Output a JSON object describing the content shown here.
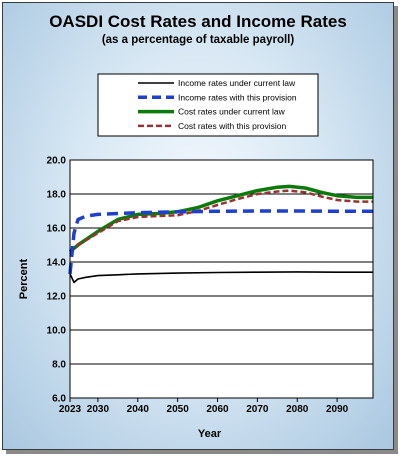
{
  "chart_data": {
    "type": "line",
    "title": "OASDI Cost Rates and Income Rates",
    "subtitle": "(as a percentage of taxable payroll)",
    "xlabel": "Year",
    "ylabel": "Percent",
    "xlim": [
      2023,
      2099
    ],
    "ylim": [
      6.0,
      20.0
    ],
    "x_ticks": [
      2023,
      2030,
      2040,
      2050,
      2060,
      2070,
      2080,
      2090
    ],
    "y_ticks": [
      "6.0",
      "8.0",
      "10.0",
      "12.0",
      "14.0",
      "16.0",
      "18.0",
      "20.0"
    ],
    "grid": true,
    "legend_position": "top",
    "series": [
      {
        "name": "Income rates under current law",
        "color": "#000000",
        "style": "solid",
        "x": [
          2023,
          2024,
          2025,
          2027,
          2030,
          2035,
          2040,
          2050,
          2060,
          2070,
          2080,
          2090,
          2099
        ],
        "y": [
          13.3,
          12.8,
          13.0,
          13.1,
          13.2,
          13.25,
          13.3,
          13.35,
          13.38,
          13.4,
          13.42,
          13.4,
          13.4
        ]
      },
      {
        "name": "Income rates with this provision",
        "color": "#1f3fcf",
        "style": "dashed",
        "x": [
          2023,
          2024,
          2025,
          2027,
          2030,
          2035,
          2040,
          2050,
          2060,
          2070,
          2080,
          2090,
          2099
        ],
        "y": [
          13.3,
          15.7,
          16.5,
          16.7,
          16.8,
          16.85,
          16.9,
          16.95,
          16.98,
          17.0,
          17.0,
          16.98,
          16.98
        ]
      },
      {
        "name": "Cost rates under current law",
        "color": "#0b7a0b",
        "style": "solid",
        "x": [
          2023,
          2025,
          2030,
          2035,
          2040,
          2045,
          2050,
          2055,
          2060,
          2065,
          2070,
          2075,
          2078,
          2082,
          2086,
          2090,
          2095,
          2099
        ],
        "y": [
          14.6,
          15.0,
          15.8,
          16.5,
          16.8,
          16.85,
          16.95,
          17.2,
          17.6,
          17.9,
          18.2,
          18.4,
          18.45,
          18.35,
          18.1,
          17.9,
          17.8,
          17.8
        ]
      },
      {
        "name": "Cost rates with this provision",
        "color": "#993333",
        "style": "dashed",
        "x": [
          2023,
          2025,
          2030,
          2035,
          2040,
          2045,
          2050,
          2055,
          2060,
          2065,
          2070,
          2075,
          2078,
          2082,
          2086,
          2090,
          2095,
          2099
        ],
        "y": [
          14.6,
          15.0,
          15.7,
          16.4,
          16.65,
          16.7,
          16.75,
          17.0,
          17.35,
          17.7,
          18.0,
          18.15,
          18.2,
          18.1,
          17.85,
          17.65,
          17.55,
          17.55
        ]
      }
    ]
  }
}
